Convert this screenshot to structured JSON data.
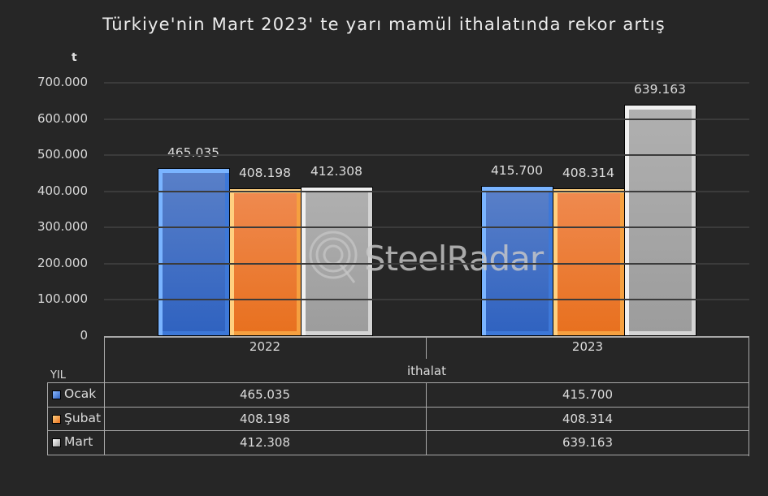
{
  "chart_data": {
    "type": "bar",
    "title": "Türkiye'nin Mart 2023' te yarı mamül ithalatında rekor artış",
    "ylabel": "t",
    "xlabel": "YIL",
    "x_group_label": "ithalat",
    "categories": [
      "2022",
      "2023"
    ],
    "series": [
      {
        "name": "Ocak",
        "values": [
          465035,
          415700
        ],
        "labels": [
          "465.035",
          "415.700"
        ],
        "color": "#4472c4"
      },
      {
        "name": "Şubat",
        "values": [
          408198,
          408314
        ],
        "labels": [
          "408.198",
          "408.314"
        ],
        "color": "#ed7d31"
      },
      {
        "name": "Mart",
        "values": [
          412308,
          639163
        ],
        "labels": [
          "412.308",
          "639.163"
        ],
        "color": "#a5a5a5"
      }
    ],
    "ylim": [
      0,
      700000
    ],
    "yticks": [
      "0",
      "100.000",
      "200.000",
      "300.000",
      "400.000",
      "500.000",
      "600.000",
      "700.000"
    ],
    "grid": true,
    "legend_position": "data-table",
    "data_table": true
  },
  "watermark": "SteelRadar"
}
